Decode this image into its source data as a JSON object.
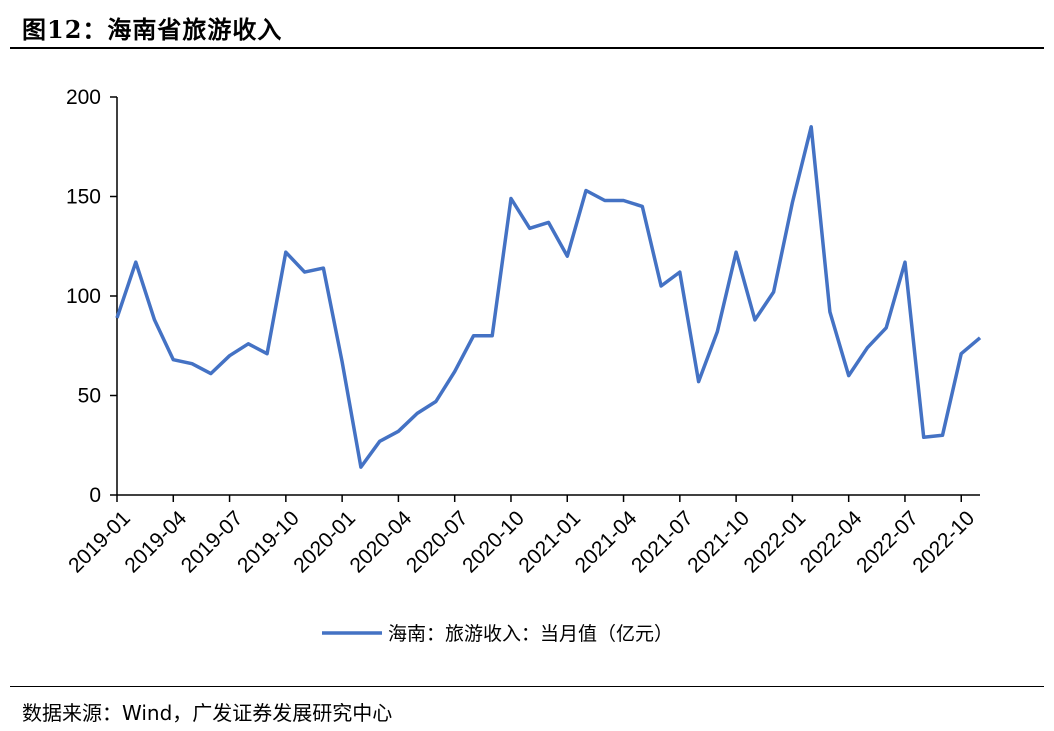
{
  "header": {
    "title": "图12：海南省旅游收入"
  },
  "footer": {
    "source": "数据来源：Wind，广发证券发展研究中心"
  },
  "chart_data": {
    "type": "line",
    "title": "",
    "xlabel": "",
    "ylabel": "",
    "ylim": [
      0,
      200
    ],
    "yticks": [
      0,
      50,
      100,
      150,
      200
    ],
    "xtick_labels": [
      "2019-01",
      "2019-04",
      "2019-07",
      "2019-10",
      "2020-01",
      "2020-04",
      "2020-07",
      "2020-10",
      "2021-01",
      "2021-04",
      "2021-07",
      "2021-10",
      "2022-01",
      "2022-04",
      "2022-07",
      "2022-10"
    ],
    "grid": false,
    "legend_position": "bottom",
    "color": "#4472C4",
    "x": [
      "2019-01",
      "2019-02",
      "2019-03",
      "2019-04",
      "2019-05",
      "2019-06",
      "2019-07",
      "2019-08",
      "2019-09",
      "2019-10",
      "2019-11",
      "2019-12",
      "2020-01",
      "2020-02",
      "2020-03",
      "2020-04",
      "2020-05",
      "2020-06",
      "2020-07",
      "2020-08",
      "2020-09",
      "2020-10",
      "2020-11",
      "2020-12",
      "2021-01",
      "2021-02",
      "2021-03",
      "2021-04",
      "2021-05",
      "2021-06",
      "2021-07",
      "2021-08",
      "2021-09",
      "2021-10",
      "2021-11",
      "2021-12",
      "2022-01",
      "2022-02",
      "2022-03",
      "2022-04",
      "2022-05",
      "2022-06",
      "2022-07",
      "2022-08",
      "2022-09",
      "2022-10",
      "2022-11"
    ],
    "series": [
      {
        "name": "海南：旅游收入：当月值（亿元）",
        "values": [
          89,
          117,
          88,
          68,
          66,
          61,
          70,
          76,
          71,
          122,
          112,
          114,
          67,
          14,
          27,
          32,
          41,
          47,
          62,
          80,
          80,
          149,
          134,
          137,
          120,
          153,
          148,
          148,
          145,
          105,
          112,
          57,
          82,
          122,
          88,
          102,
          147,
          185,
          92,
          60,
          74,
          84,
          117,
          29,
          30,
          71,
          79
        ]
      }
    ]
  }
}
